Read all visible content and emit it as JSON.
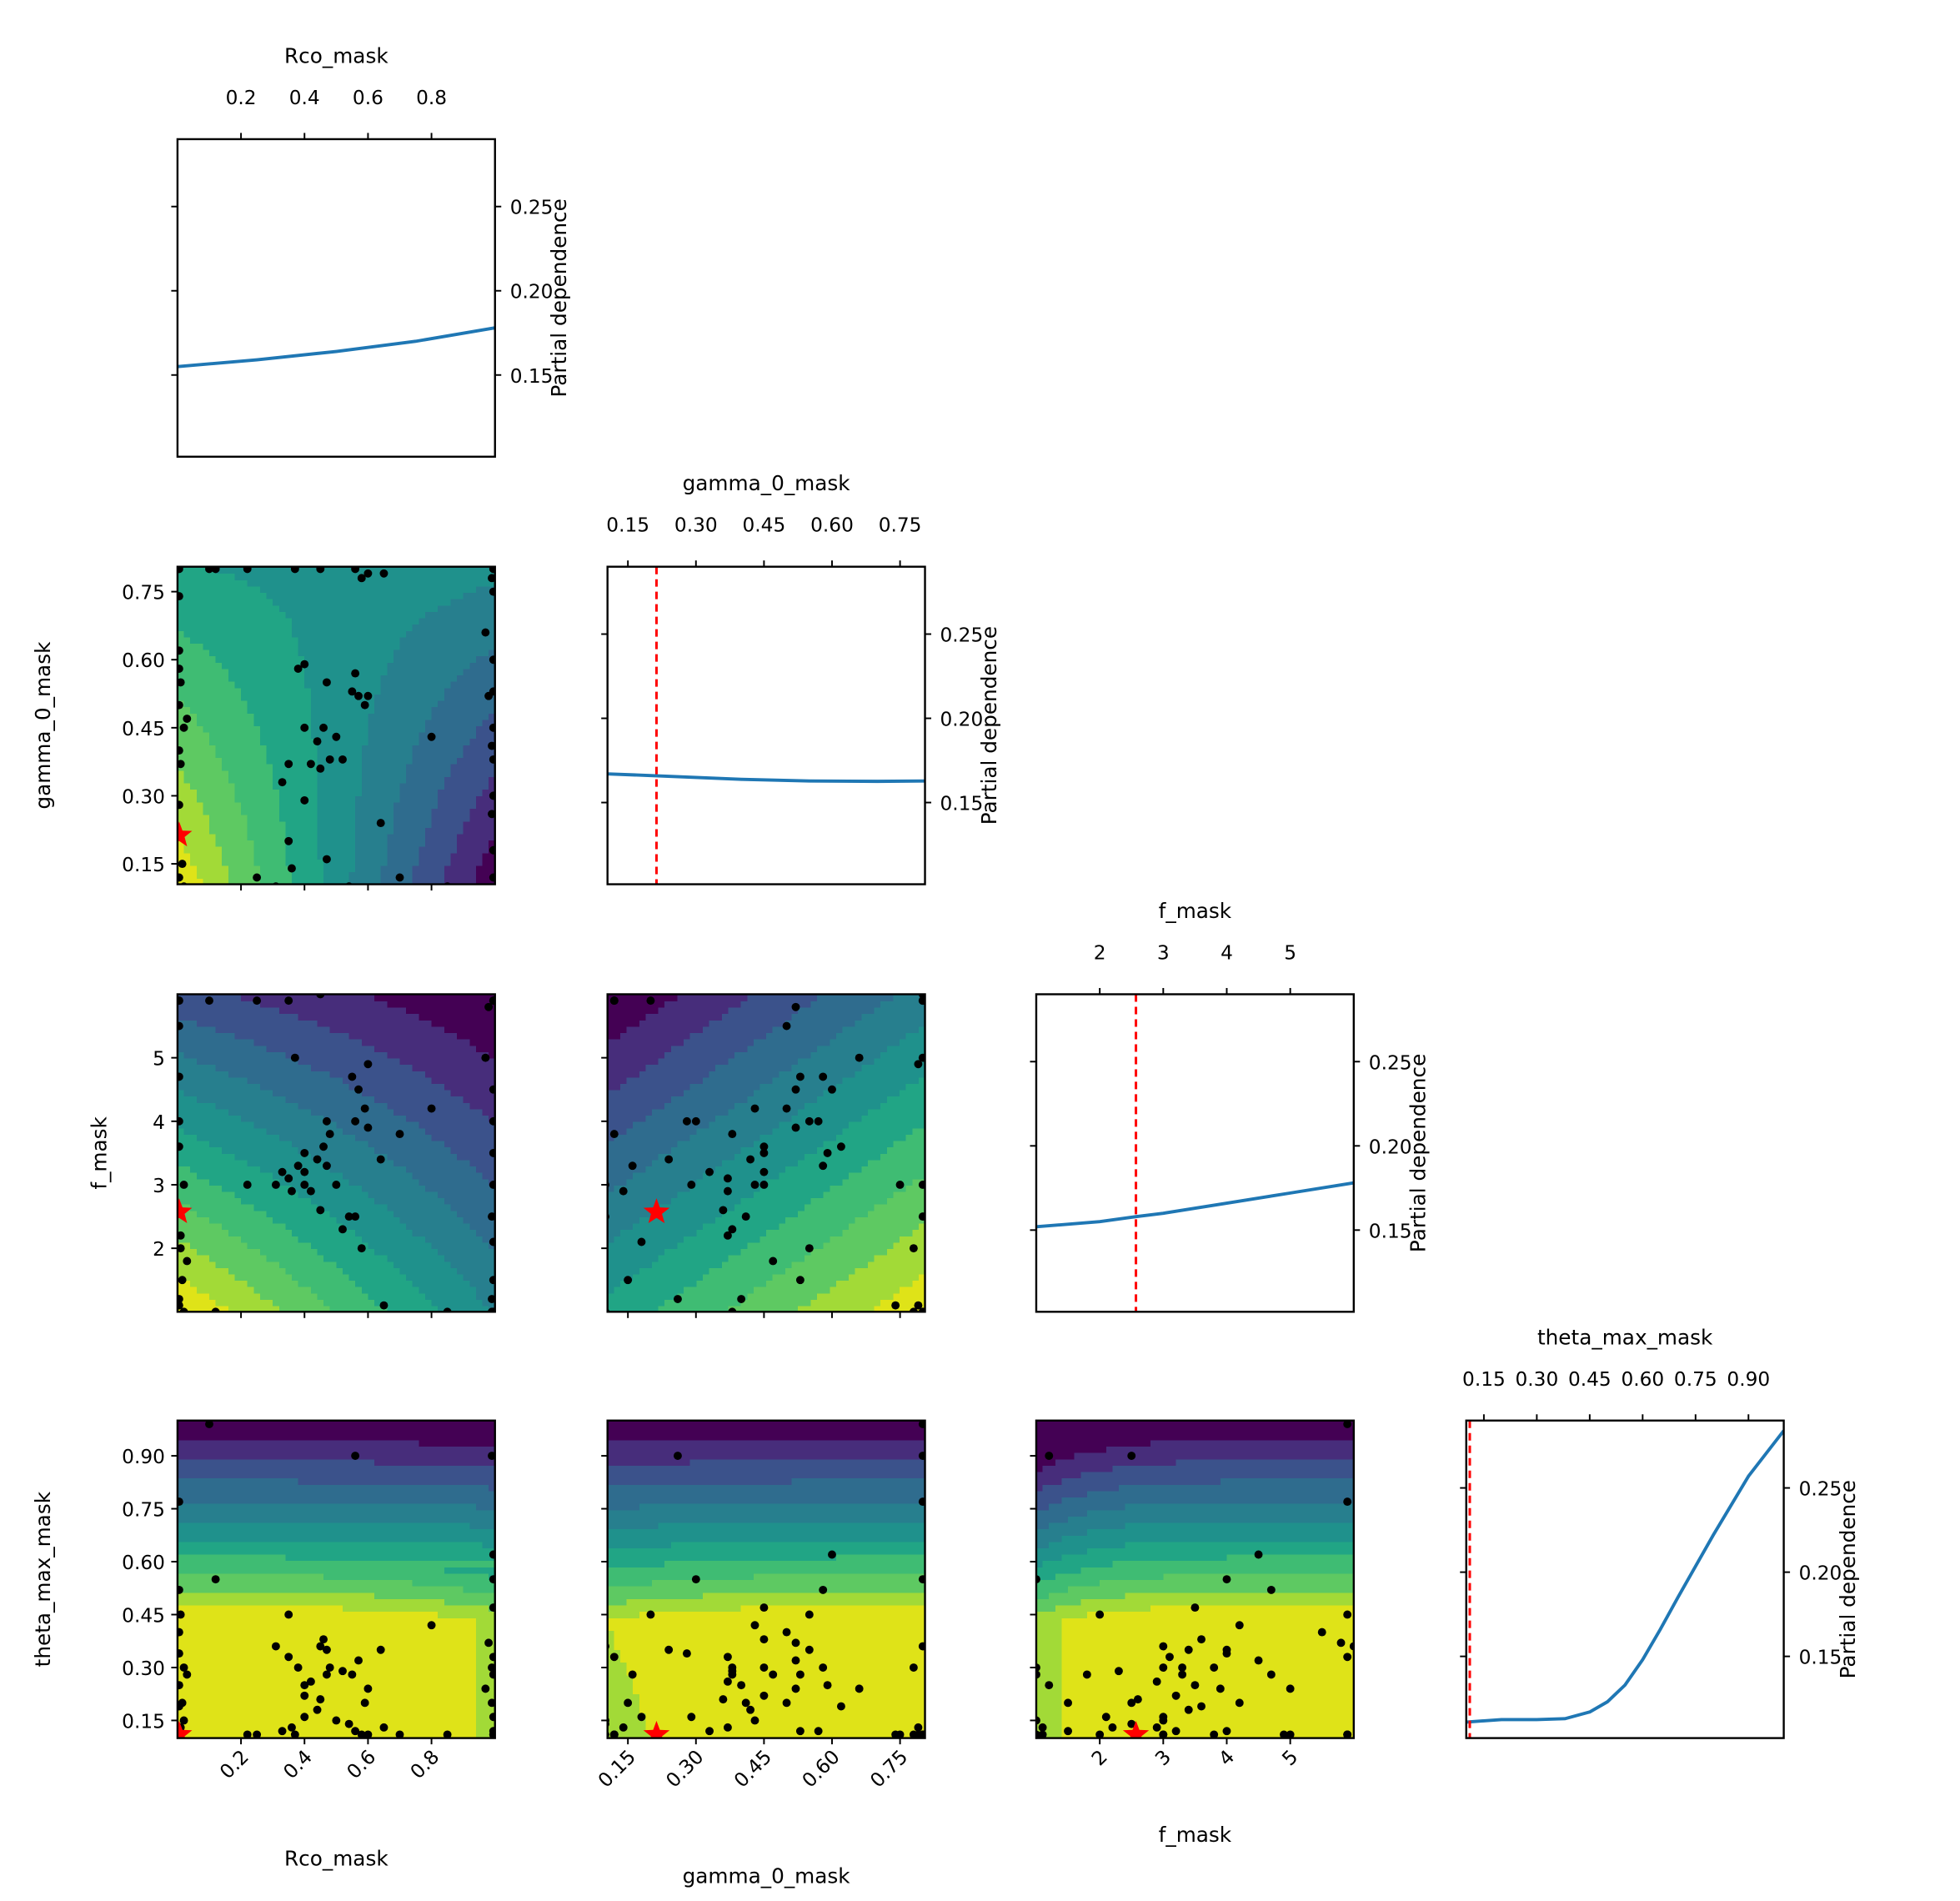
{
  "chart_data": {
    "type": "pairplot-partial-dependence",
    "ylabel_1d": "Partial dependence",
    "y_1d_lim": [
      0.1015,
      0.29
    ],
    "y_1d_tick_values": [
      0.15,
      0.2,
      0.25
    ],
    "y_1d_tick_labels": [
      "0.15",
      "0.20",
      "0.25"
    ],
    "params": [
      {
        "name": "Rco_mask",
        "range": [
          0.0,
          1.0
        ],
        "tick_values": [
          0.2,
          0.4,
          0.6,
          0.8
        ],
        "tick_labels": [
          "0.2",
          "0.4",
          "0.6",
          "0.8"
        ]
      },
      {
        "name": "gamma_0_mask",
        "range": [
          0.105,
          0.805
        ],
        "tick_values": [
          0.15,
          0.3,
          0.45,
          0.6,
          0.75
        ],
        "tick_labels": [
          "0.15",
          "0.30",
          "0.45",
          "0.60",
          "0.75"
        ]
      },
      {
        "name": "f_mask",
        "range": [
          1.0,
          6.0
        ],
        "tick_values": [
          2,
          3,
          4,
          5
        ],
        "tick_labels": [
          "2",
          "3",
          "4",
          "5"
        ]
      },
      {
        "name": "theta_max_mask",
        "range": [
          0.1,
          1.0
        ],
        "tick_values": [
          0.15,
          0.3,
          0.45,
          0.6,
          0.75,
          0.9
        ],
        "tick_labels": [
          "0.15",
          "0.30",
          "0.45",
          "0.60",
          "0.75",
          "0.90"
        ]
      }
    ],
    "curves": [
      {
        "param": "Rco_mask",
        "x": [
          0,
          0.25,
          0.5,
          0.75,
          1.0
        ],
        "y": [
          0.155,
          0.159,
          0.164,
          0.17,
          0.178
        ]
      },
      {
        "param": "gamma_0_mask",
        "x": [
          0.105,
          0.25,
          0.4,
          0.55,
          0.7,
          0.805
        ],
        "y": [
          0.167,
          0.1655,
          0.1638,
          0.1628,
          0.1626,
          0.1628
        ]
      },
      {
        "param": "f_mask",
        "x": [
          1,
          2,
          2.57,
          3,
          4,
          5,
          6
        ],
        "y": [
          0.152,
          0.155,
          0.158,
          0.16,
          0.166,
          0.172,
          0.178
        ]
      },
      {
        "param": "theta_max_mask",
        "x": [
          0.1,
          0.2,
          0.3,
          0.38,
          0.45,
          0.5,
          0.55,
          0.6,
          0.65,
          0.7,
          0.8,
          0.9,
          1.0
        ],
        "y": [
          0.111,
          0.1125,
          0.1125,
          0.113,
          0.117,
          0.123,
          0.133,
          0.148,
          0.166,
          0.185,
          0.222,
          0.257,
          0.284
        ]
      }
    ],
    "best_point": [
      0.005,
      0.213,
      2.57,
      0.11
    ],
    "samples": [
      [
        0.38,
        0.58,
        3.3,
        0.3
      ],
      [
        0.4,
        0.59,
        3.5,
        0.25
      ],
      [
        0.47,
        0.55,
        4.0,
        0.35
      ],
      [
        0.55,
        0.53,
        4.7,
        0.28
      ],
      [
        0.57,
        0.52,
        4.5,
        0.32
      ],
      [
        0.59,
        0.5,
        4.2,
        0.2
      ],
      [
        0.4,
        0.45,
        3.2,
        0.22
      ],
      [
        0.44,
        0.42,
        3.4,
        0.18
      ],
      [
        0.46,
        0.45,
        3.6,
        0.38
      ],
      [
        0.5,
        0.43,
        3.0,
        0.15
      ],
      [
        0.48,
        0.38,
        3.8,
        0.3
      ],
      [
        0.42,
        0.37,
        2.9,
        0.26
      ],
      [
        0.35,
        0.37,
        3.1,
        0.33
      ],
      [
        0.33,
        0.33,
        3.2,
        0.12
      ],
      [
        0.4,
        0.29,
        3.0,
        0.16
      ],
      [
        0.45,
        0.36,
        2.6,
        0.21
      ],
      [
        0.52,
        0.38,
        2.3,
        0.29
      ],
      [
        0.64,
        0.24,
        3.4,
        0.35
      ],
      [
        0.8,
        0.43,
        4.2,
        0.42
      ],
      [
        0.56,
        0.57,
        4.0,
        0.12
      ],
      [
        0.6,
        0.52,
        3.9,
        0.24
      ],
      [
        0.36,
        0.14,
        2.9,
        0.13
      ],
      [
        0.47,
        0.16,
        3.3,
        0.28
      ],
      [
        0.31,
        0.1,
        3.0,
        0.36
      ],
      [
        0.54,
        0.1,
        2.5,
        0.14
      ],
      [
        0.005,
        0.8,
        5.9,
        0.77
      ],
      [
        0.005,
        0.74,
        1.1,
        0.11
      ],
      [
        0.005,
        0.58,
        4.7,
        0.52
      ],
      [
        0.01,
        0.55,
        2.0,
        0.45
      ],
      [
        0.005,
        0.5,
        5.5,
        0.4
      ],
      [
        0.02,
        0.45,
        3.0,
        0.3
      ],
      [
        0.005,
        0.4,
        1.2,
        0.25
      ],
      [
        0.01,
        0.37,
        2.2,
        0.13
      ],
      [
        0.005,
        0.28,
        4.0,
        0.34
      ],
      [
        0.015,
        0.15,
        1.5,
        0.2
      ],
      [
        0.005,
        0.12,
        5.9,
        0.11
      ],
      [
        0.02,
        0.1,
        1.0,
        0.15
      ],
      [
        0.005,
        0.62,
        3.6,
        0.19
      ],
      [
        0.03,
        0.47,
        1.8,
        0.28
      ],
      [
        0.995,
        0.8,
        5.9,
        0.11
      ],
      [
        0.99,
        0.78,
        1.0,
        0.3
      ],
      [
        0.995,
        0.6,
        4.5,
        0.62
      ],
      [
        0.995,
        0.53,
        1.5,
        0.12
      ],
      [
        0.98,
        0.52,
        5.8,
        0.37
      ],
      [
        0.995,
        0.45,
        3.5,
        0.47
      ],
      [
        0.99,
        0.41,
        2.5,
        0.2
      ],
      [
        0.995,
        0.38,
        1.0,
        0.28
      ],
      [
        0.995,
        0.12,
        5.9,
        0.33
      ],
      [
        0.995,
        0.75,
        3.0,
        0.11
      ],
      [
        0.99,
        0.26,
        1.2,
        0.9
      ],
      [
        0.995,
        0.3,
        4.0,
        0.55
      ],
      [
        0.97,
        0.66,
        5.0,
        0.24
      ],
      [
        0.995,
        0.18,
        2.1,
        0.16
      ],
      [
        0.1,
        0.8,
        5.9,
        0.99
      ],
      [
        0.22,
        0.8,
        3.0,
        0.11
      ],
      [
        0.56,
        0.8,
        2.5,
        0.9
      ],
      [
        0.6,
        0.79,
        4.9,
        0.11
      ],
      [
        0.65,
        0.79,
        1.1,
        0.13
      ],
      [
        0.45,
        0.8,
        6.0,
        0.36
      ],
      [
        0.58,
        0.78,
        2.0,
        0.11
      ],
      [
        0.37,
        0.8,
        5.0,
        0.11
      ],
      [
        0.12,
        0.8,
        1.0,
        0.55
      ],
      [
        0.25,
        0.12,
        5.9,
        0.11
      ],
      [
        0.7,
        0.12,
        3.8,
        0.11
      ],
      [
        0.85,
        0.1,
        1.0,
        0.11
      ],
      [
        0.35,
        0.2,
        5.9,
        0.45
      ]
    ],
    "colors": {
      "line": "#1f77b4",
      "best": "#ff0000",
      "points": "#000000"
    },
    "colormap": "viridis",
    "contour_levels": 10
  }
}
